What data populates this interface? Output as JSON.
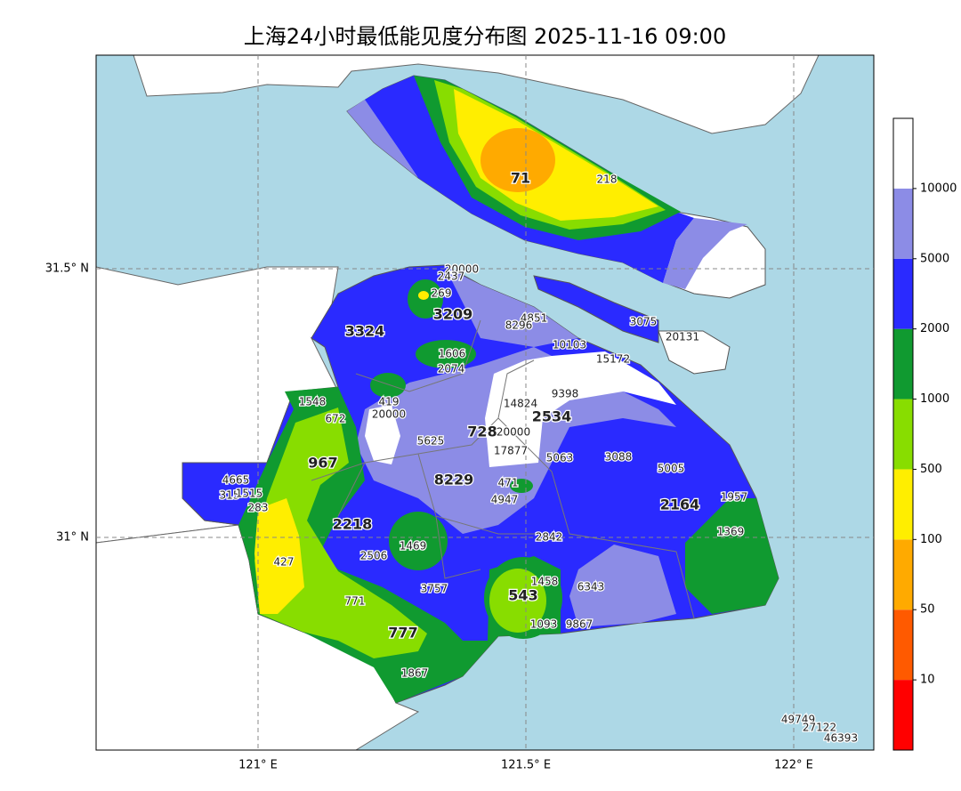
{
  "title": "上海24小时最低能见度分布图 2025-11-16 09:00",
  "lat_ticks": [
    {
      "value": 31.5,
      "label": "31.5° N"
    },
    {
      "value": 31,
      "label": "31° N"
    }
  ],
  "lon_ticks": [
    {
      "value": 121,
      "label": "121° E"
    },
    {
      "value": 121.5,
      "label": "121.5° E"
    },
    {
      "value": 122,
      "label": "122° E"
    }
  ],
  "colorbar": {
    "ticks": [
      10,
      50,
      100,
      500,
      1000,
      2000,
      5000,
      10000
    ],
    "colors": [
      "#ff0000",
      "#ff5a00",
      "#ffaa00",
      "#ffee00",
      "#88dd00",
      "#109a30",
      "#2a2aff",
      "#8c8ce6",
      "#ffffff"
    ]
  },
  "stations": [
    71,
    218,
    20000,
    2437,
    269,
    3209,
    3324,
    4851,
    8296,
    3075,
    20131,
    10103,
    15172,
    1606,
    2074,
    1548,
    419,
    9398,
    14824,
    2534,
    672,
    20000,
    728,
    20000,
    5625,
    17877,
    5063,
    3088,
    5005,
    967,
    4665,
    8229,
    471,
    315,
    1515,
    1957,
    4947,
    283,
    2164,
    2218,
    2842,
    1369,
    1469,
    2506,
    427,
    1458,
    6343,
    3757,
    543,
    771,
    1093,
    9867,
    777,
    1867,
    49749,
    27122,
    46393
  ]
}
